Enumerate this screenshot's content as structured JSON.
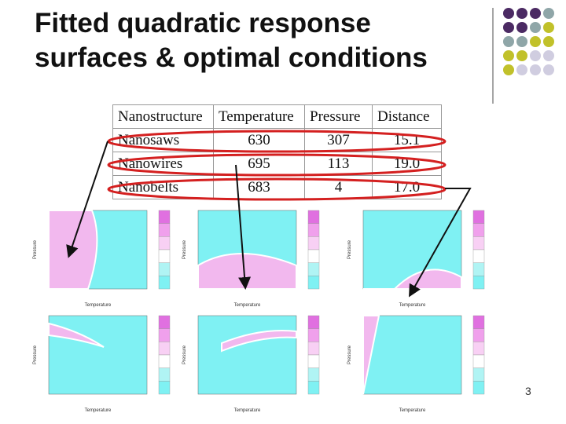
{
  "title": "Fitted quadratic response surfaces & optimal conditions",
  "table": {
    "header": [
      "Nanostructure",
      "Temperature",
      "Pressure",
      "Distance"
    ],
    "rows": [
      [
        "Nanosaws",
        "630",
        "307",
        "15.1"
      ],
      [
        "Nanowires",
        "695",
        "113",
        "19.0"
      ],
      [
        "Nanobelts",
        "683",
        "4",
        "17.0"
      ]
    ]
  },
  "plots": [
    {
      "xlabel": "Temperature",
      "ylabel": "Pressure"
    },
    {
      "xlabel": "Temperature",
      "ylabel": "Pressure"
    },
    {
      "xlabel": "Temperature",
      "ylabel": "Pressure"
    },
    {
      "xlabel": "Temperature",
      "ylabel": "Pressure"
    },
    {
      "xlabel": "Temperature",
      "ylabel": "Pressure"
    },
    {
      "xlabel": "Temperature",
      "ylabel": "Pressure"
    }
  ],
  "page_number": "3"
}
